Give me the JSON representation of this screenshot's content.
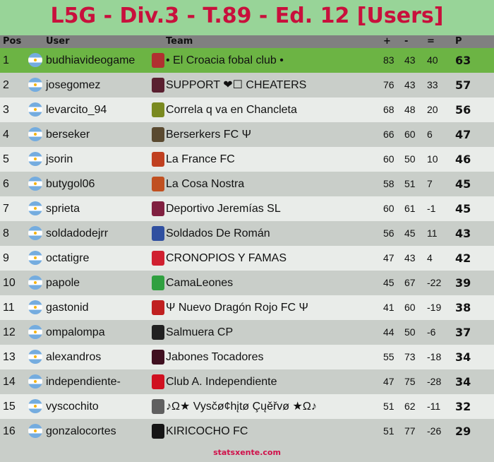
{
  "title": "L5G - Div.3 - T.89 - Ed. 12 [Users]",
  "columns": {
    "pos": "Pos",
    "user": "User",
    "team": "Team",
    "plus": "+",
    "minus": "-",
    "eq": "=",
    "p": "P"
  },
  "rows": [
    {
      "pos": "1",
      "user": "budhiavideogame",
      "team": "• El Croacia fobal club •",
      "plus": "83",
      "minus": "43",
      "eq": "40",
      "p": "63",
      "badge_color": "#b03030"
    },
    {
      "pos": "2",
      "user": "josegomez",
      "team": "SUPPORT ❤☐ CHEATERS",
      "plus": "76",
      "minus": "43",
      "eq": "33",
      "p": "57",
      "badge_color": "#5a2030"
    },
    {
      "pos": "3",
      "user": "levarcito_94",
      "team": "Correla q va en Chancleta",
      "plus": "68",
      "minus": "48",
      "eq": "20",
      "p": "56",
      "badge_color": "#7a8a20"
    },
    {
      "pos": "4",
      "user": "berseker",
      "team": "Berserkers FC Ψ",
      "plus": "66",
      "minus": "60",
      "eq": "6",
      "p": "47",
      "badge_color": "#5a4a30"
    },
    {
      "pos": "5",
      "user": "jsorin",
      "team": "La France FC",
      "plus": "60",
      "minus": "50",
      "eq": "10",
      "p": "46",
      "badge_color": "#c04020"
    },
    {
      "pos": "6",
      "user": "butygol06",
      "team": "La Cosa Nostra",
      "plus": "58",
      "minus": "51",
      "eq": "7",
      "p": "45",
      "badge_color": "#c05020"
    },
    {
      "pos": "7",
      "user": "sprieta",
      "team": "Deportivo Jeremías SL",
      "plus": "60",
      "minus": "61",
      "eq": "-1",
      "p": "45",
      "badge_color": "#802040"
    },
    {
      "pos": "8",
      "user": "soldadodejrr",
      "team": "Soldados De Román",
      "plus": "56",
      "minus": "45",
      "eq": "11",
      "p": "43",
      "badge_color": "#3050a0"
    },
    {
      "pos": "9",
      "user": "octatigre",
      "team": "CRONOPIOS Y FAMAS",
      "plus": "47",
      "minus": "43",
      "eq": "4",
      "p": "42",
      "badge_color": "#d02030"
    },
    {
      "pos": "10",
      "user": "papole",
      "team": "CamaLeones",
      "plus": "45",
      "minus": "67",
      "eq": "-22",
      "p": "39",
      "badge_color": "#30a040"
    },
    {
      "pos": "11",
      "user": "gastonid",
      "team": "Ψ Nuevo Dragón Rojo FC Ψ",
      "plus": "41",
      "minus": "60",
      "eq": "-19",
      "p": "38",
      "badge_color": "#c02020"
    },
    {
      "pos": "12",
      "user": "ompalompa",
      "team": "Salmuera CP",
      "plus": "44",
      "minus": "50",
      "eq": "-6",
      "p": "37",
      "badge_color": "#202020"
    },
    {
      "pos": "13",
      "user": "alexandros",
      "team": "Jabones Tocadores",
      "plus": "55",
      "minus": "73",
      "eq": "-18",
      "p": "34",
      "badge_color": "#401020"
    },
    {
      "pos": "14",
      "user": "independiente-",
      "team": "Club A. Independiente",
      "plus": "47",
      "minus": "75",
      "eq": "-28",
      "p": "34",
      "badge_color": "#d01020"
    },
    {
      "pos": "15",
      "user": "vyscochito",
      "team": "♪Ω★ Vysčø¢hįtø Çųěřvø ★Ω♪",
      "plus": "51",
      "minus": "62",
      "eq": "-11",
      "p": "32",
      "badge_color": "#606060"
    },
    {
      "pos": "16",
      "user": "gonzalocortes",
      "team": "KIRICOCHO FC",
      "plus": "51",
      "minus": "77",
      "eq": "-26",
      "p": "29",
      "badge_color": "#151515"
    }
  ],
  "footer": "statsxente.com"
}
